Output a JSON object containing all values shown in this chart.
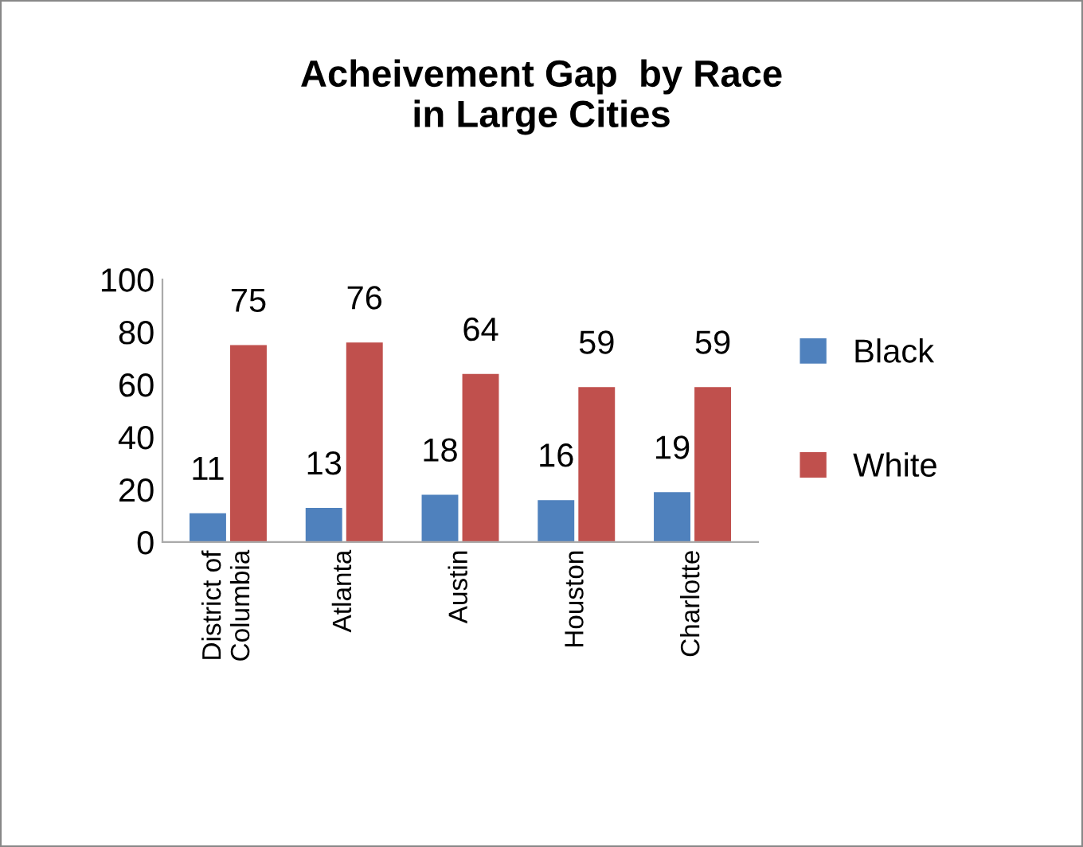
{
  "chart_data": {
    "type": "bar",
    "title": "Acheivement Gap  by Race\nin Large Cities",
    "categories": [
      "District of\nColumbia",
      "Atlanta",
      "Austin",
      "Houston",
      "Charlotte"
    ],
    "series": [
      {
        "name": "Black",
        "color": "#4f81bd",
        "values": [
          11,
          13,
          18,
          16,
          19
        ]
      },
      {
        "name": "White",
        "color": "#c0504d",
        "values": [
          75,
          76,
          64,
          59,
          59
        ]
      }
    ],
    "ylim": [
      0,
      100
    ],
    "yticks": [
      0,
      20,
      40,
      60,
      80,
      100
    ],
    "grid": false,
    "legend": "right",
    "data_labels": true
  }
}
